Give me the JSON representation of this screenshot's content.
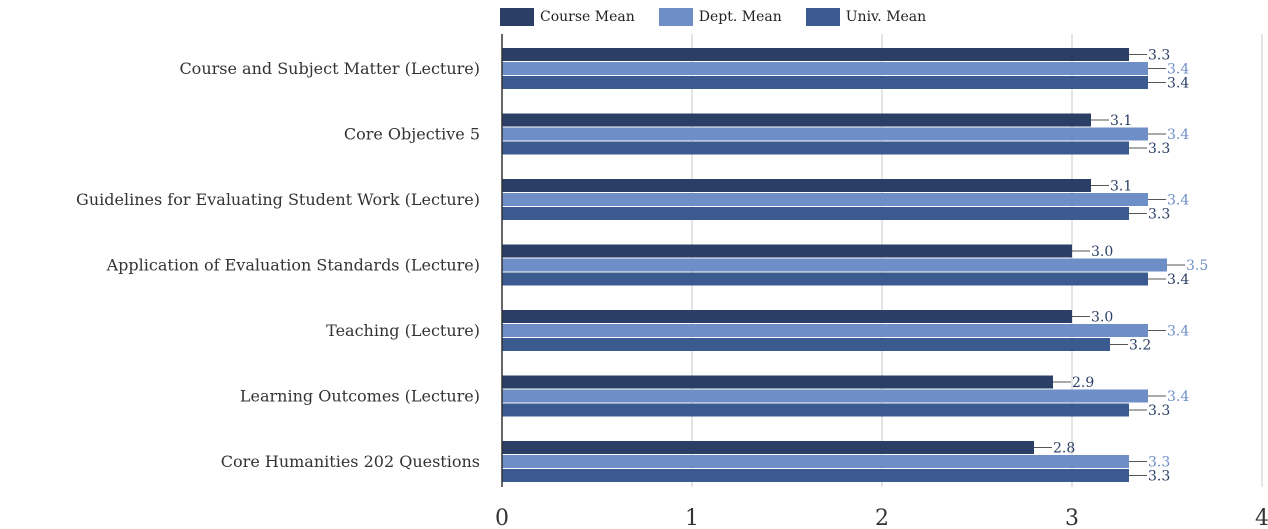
{
  "chart_data": {
    "type": "bar",
    "orientation": "horizontal",
    "categories": [
      "Course and Subject Matter (Lecture)",
      "Core Objective 5",
      "Guidelines for Evaluating Student Work (Lecture)",
      "Application of Evaluation Standards (Lecture)",
      "Teaching (Lecture)",
      "Learning Outcomes (Lecture)",
      "Core Humanities 202 Questions"
    ],
    "series": [
      {
        "name": "Course Mean",
        "color": "#2b3f66",
        "label_color": "#2b3f66",
        "values": [
          3.3,
          3.1,
          3.1,
          3.0,
          3.0,
          2.9,
          2.8
        ],
        "labels": [
          "3.3",
          "3.1",
          "3.1",
          "3.0",
          "3.0",
          "2.9",
          "2.8"
        ]
      },
      {
        "name": "Dept. Mean",
        "color": "#6d8ec6",
        "label_color": "#6d8ec6",
        "values": [
          3.4,
          3.4,
          3.4,
          3.5,
          3.4,
          3.4,
          3.3
        ],
        "labels": [
          "3.4",
          "3.4",
          "3.4",
          "3.5",
          "3.4",
          "3.4",
          "3.3"
        ]
      },
      {
        "name": "Univ. Mean",
        "color": "#3b5a8f",
        "label_color": "#2b3f66",
        "values": [
          3.4,
          3.3,
          3.3,
          3.4,
          3.2,
          3.3,
          3.3
        ],
        "labels": [
          "3.4",
          "3.3",
          "3.3",
          "3.4",
          "3.2",
          "3.3",
          "3.3"
        ]
      }
    ],
    "xlim": [
      0,
      4
    ],
    "xticks": [
      "0",
      "1",
      "2",
      "3",
      "4"
    ],
    "grid": true,
    "legend_position": "top",
    "title": "",
    "xlabel": "",
    "ylabel": ""
  }
}
